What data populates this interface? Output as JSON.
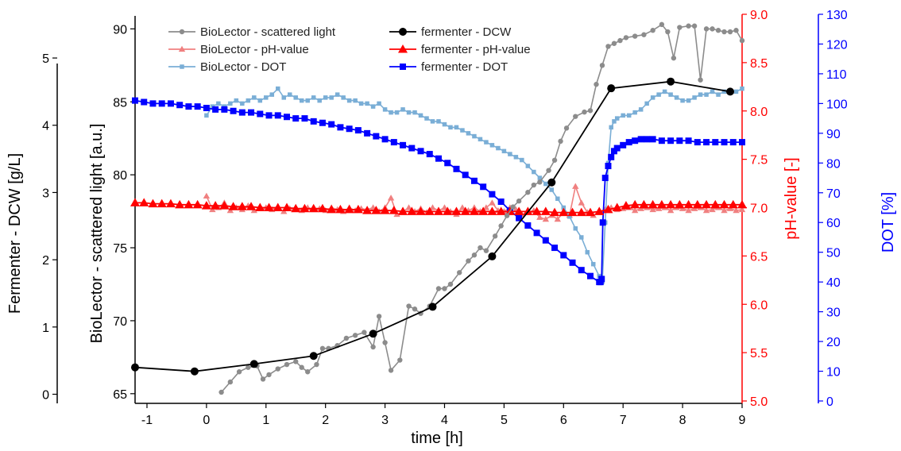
{
  "chart_data": {
    "type": "line",
    "xlabel": "time   [h]",
    "x_ticks": [
      "-1",
      "0",
      "1",
      "2",
      "3",
      "4",
      "5",
      "6",
      "7",
      "8",
      "9"
    ],
    "xlim": [
      -1.2,
      9
    ],
    "axes": {
      "dcw": {
        "label": "Fermenter - DCW   [g/L]",
        "ticks": [
          "0",
          "1",
          "2",
          "3",
          "4",
          "5"
        ],
        "ylim": [
          -0.1,
          5.65
        ],
        "color": "#000000"
      },
      "sl": {
        "label": "BioLector - scattered light   [a.u.]",
        "ticks": [
          "65",
          "70",
          "75",
          "80",
          "85",
          "90"
        ],
        "ylim": [
          64.5,
          91
        ],
        "color": "#000000"
      },
      "ph": {
        "label": "pH-value   [-]",
        "ticks": [
          "5.0",
          "5.5",
          "6.0",
          "6.5",
          "7.0",
          "7.5",
          "8.0",
          "8.5",
          "9.0"
        ],
        "ylim": [
          5.0,
          9.0
        ],
        "color": "#ff0000"
      },
      "dot": {
        "label": "DOT   [%]",
        "ticks": [
          "0",
          "10",
          "20",
          "30",
          "40",
          "50",
          "60",
          "70",
          "80",
          "90",
          "100",
          "110",
          "120",
          "130"
        ],
        "ylim": [
          0,
          130
        ],
        "color": "#0000ff"
      }
    },
    "legend": {
      "placement": "top-left"
    },
    "series": [
      {
        "name": "BioLector - scattered light",
        "axis": "sl",
        "color": "#8c8c8c",
        "marker": "circle",
        "x": [
          0.25,
          0.4,
          0.55,
          0.7,
          0.85,
          0.95,
          1.05,
          1.2,
          1.35,
          1.5,
          1.6,
          1.7,
          1.85,
          1.95,
          2.05,
          2.2,
          2.35,
          2.5,
          2.65,
          2.8,
          2.9,
          3.0,
          3.1,
          3.25,
          3.4,
          3.5,
          3.6,
          3.75,
          3.9,
          4.0,
          4.1,
          4.25,
          4.4,
          4.5,
          4.6,
          4.7,
          4.85,
          4.95,
          5.05,
          5.15,
          5.25,
          5.4,
          5.5,
          5.6,
          5.75,
          5.85,
          5.95,
          6.05,
          6.2,
          6.35,
          6.45,
          6.55,
          6.65,
          6.75,
          6.85,
          6.95,
          7.05,
          7.2,
          7.35,
          7.5,
          7.65,
          7.75,
          7.85,
          7.95,
          8.1,
          8.2,
          8.3,
          8.4,
          8.5,
          8.6,
          8.7,
          8.8,
          8.9,
          9.0
        ],
        "y": [
          65.1,
          65.8,
          66.5,
          66.8,
          66.9,
          66.0,
          66.3,
          66.7,
          67.0,
          67.2,
          66.8,
          66.5,
          67.0,
          68.1,
          68.1,
          68.3,
          68.8,
          69.0,
          69.2,
          68.2,
          70.3,
          68.5,
          66.6,
          67.3,
          71.0,
          70.8,
          70.5,
          71.0,
          72.2,
          72.2,
          72.5,
          73.3,
          74.1,
          74.5,
          75.0,
          74.8,
          75.8,
          76.5,
          77.2,
          77.8,
          78.2,
          78.8,
          79.3,
          79.5,
          80.3,
          81.0,
          82.3,
          83.2,
          84.0,
          84.3,
          84.4,
          86.2,
          87.5,
          88.8,
          89.0,
          89.2,
          89.4,
          89.5,
          89.6,
          89.9,
          90.3,
          89.8,
          88.0,
          90.1,
          90.2,
          90.2,
          86.5,
          90.0,
          90.0,
          89.9,
          89.8,
          89.8,
          89.9,
          89.2
        ]
      },
      {
        "name": "fermenter - DCW",
        "axis": "dcw",
        "color": "#000000",
        "marker": "circle-large",
        "x": [
          -1.2,
          -0.2,
          0.8,
          1.8,
          2.8,
          3.8,
          4.8,
          5.8,
          6.8,
          7.8,
          8.8
        ],
        "y": [
          0.4,
          0.34,
          0.45,
          0.57,
          0.9,
          1.3,
          2.05,
          3.15,
          4.55,
          4.65,
          4.5
        ]
      },
      {
        "name": "BioLector - pH-value",
        "axis": "ph",
        "color": "#f08080",
        "marker": "triangle",
        "x": [
          0.0,
          0.1,
          0.2,
          0.3,
          0.4,
          0.5,
          0.6,
          0.7,
          0.8,
          0.9,
          1.0,
          1.1,
          1.2,
          1.3,
          1.4,
          1.5,
          1.6,
          1.7,
          1.8,
          1.9,
          2.0,
          2.1,
          2.2,
          2.3,
          2.4,
          2.5,
          2.6,
          2.7,
          2.8,
          2.9,
          3.0,
          3.1,
          3.2,
          3.3,
          3.4,
          3.5,
          3.6,
          3.7,
          3.8,
          3.9,
          4.0,
          4.1,
          4.2,
          4.3,
          4.4,
          4.5,
          4.6,
          4.7,
          4.8,
          4.9,
          5.0,
          5.1,
          5.2,
          5.3,
          5.4,
          5.5,
          5.6,
          5.7,
          5.8,
          5.9,
          6.0,
          6.1,
          6.2,
          6.3,
          6.4,
          6.5,
          6.6,
          6.7,
          6.8,
          6.9,
          7.0,
          7.1,
          7.2,
          7.3,
          7.4,
          7.5,
          7.6,
          7.7,
          7.8,
          7.9,
          8.0,
          8.1,
          8.2,
          8.3,
          8.4,
          8.5,
          8.6,
          8.7,
          8.8,
          8.9,
          9.0
        ],
        "y": [
          7.12,
          6.98,
          7.0,
          7.05,
          6.97,
          7.0,
          6.98,
          7.02,
          6.97,
          7.0,
          7.0,
          6.98,
          7.0,
          6.96,
          6.99,
          7.0,
          6.97,
          7.0,
          6.98,
          6.99,
          6.97,
          7.0,
          6.98,
          6.96,
          7.0,
          6.97,
          6.99,
          6.98,
          7.0,
          6.96,
          7.0,
          7.1,
          6.93,
          6.96,
          7.0,
          6.96,
          6.99,
          6.95,
          7.0,
          6.97,
          7.0,
          6.96,
          6.93,
          7.0,
          6.97,
          7.0,
          6.96,
          7.0,
          7.05,
          6.97,
          6.96,
          7.0,
          6.98,
          6.93,
          6.95,
          6.97,
          6.9,
          6.88,
          6.92,
          6.88,
          6.95,
          6.92,
          7.22,
          7.05,
          6.95,
          6.92,
          6.96,
          6.98,
          7.0,
          6.98,
          6.99,
          7.0,
          6.97,
          6.99,
          7.0,
          6.98,
          6.99,
          7.0,
          6.97,
          7.0,
          6.99,
          6.97,
          6.99,
          7.0,
          6.97,
          6.98,
          7.0,
          6.97,
          6.99,
          6.97,
          6.98
        ]
      },
      {
        "name": "fermenter - pH-value",
        "axis": "ph",
        "color": "#ff0000",
        "marker": "triangle-large",
        "x": [
          -1.2,
          -1.05,
          -0.9,
          -0.75,
          -0.6,
          -0.45,
          -0.3,
          -0.15,
          0.0,
          0.15,
          0.3,
          0.45,
          0.6,
          0.75,
          0.9,
          1.05,
          1.2,
          1.35,
          1.5,
          1.65,
          1.8,
          1.95,
          2.1,
          2.25,
          2.4,
          2.55,
          2.7,
          2.85,
          3.0,
          3.15,
          3.3,
          3.45,
          3.6,
          3.75,
          3.9,
          4.05,
          4.2,
          4.35,
          4.5,
          4.65,
          4.8,
          4.95,
          5.1,
          5.25,
          5.4,
          5.55,
          5.7,
          5.85,
          6.0,
          6.15,
          6.3,
          6.45,
          6.6,
          6.75,
          6.9,
          7.05,
          7.2,
          7.35,
          7.5,
          7.65,
          7.8,
          7.95,
          8.1,
          8.25,
          8.4,
          8.55,
          8.7,
          8.85,
          9.0
        ],
        "y": [
          7.05,
          7.05,
          7.04,
          7.04,
          7.04,
          7.03,
          7.03,
          7.03,
          7.02,
          7.02,
          7.02,
          7.01,
          7.01,
          7.01,
          7.0,
          7.0,
          7.0,
          7.0,
          6.99,
          6.99,
          6.99,
          6.99,
          6.98,
          6.98,
          6.98,
          6.98,
          6.97,
          6.97,
          6.97,
          6.97,
          6.96,
          6.96,
          6.96,
          6.96,
          6.96,
          6.96,
          6.96,
          6.96,
          6.96,
          6.96,
          6.96,
          6.96,
          6.96,
          6.96,
          6.96,
          6.96,
          6.96,
          6.95,
          6.95,
          6.95,
          6.95,
          6.95,
          6.96,
          6.98,
          7.0,
          7.02,
          7.03,
          7.03,
          7.03,
          7.03,
          7.03,
          7.03,
          7.03,
          7.03,
          7.03,
          7.03,
          7.03,
          7.03,
          7.03
        ]
      },
      {
        "name": "BioLector - DOT",
        "axis": "dot",
        "color": "#7aaed6",
        "marker": "square",
        "x": [
          0.0,
          0.1,
          0.2,
          0.3,
          0.4,
          0.5,
          0.6,
          0.7,
          0.8,
          0.9,
          1.0,
          1.1,
          1.2,
          1.3,
          1.4,
          1.5,
          1.6,
          1.7,
          1.8,
          1.9,
          2.0,
          2.1,
          2.2,
          2.3,
          2.4,
          2.5,
          2.6,
          2.7,
          2.8,
          2.9,
          3.0,
          3.1,
          3.2,
          3.3,
          3.4,
          3.5,
          3.6,
          3.7,
          3.8,
          3.9,
          4.0,
          4.1,
          4.2,
          4.3,
          4.4,
          4.5,
          4.6,
          4.7,
          4.8,
          4.9,
          5.0,
          5.1,
          5.2,
          5.3,
          5.4,
          5.5,
          5.6,
          5.7,
          5.8,
          5.9,
          6.0,
          6.1,
          6.2,
          6.3,
          6.4,
          6.5,
          6.6,
          6.65,
          6.7,
          6.75,
          6.8,
          6.85,
          6.9,
          7.0,
          7.1,
          7.2,
          7.3,
          7.4,
          7.5,
          7.6,
          7.7,
          7.8,
          7.9,
          8.0,
          8.1,
          8.2,
          8.3,
          8.4,
          8.5,
          8.6,
          8.7,
          8.8,
          8.9,
          9.0
        ],
        "y": [
          96,
          99,
          100,
          99,
          100,
          101,
          100,
          101,
          102,
          101,
          102,
          103,
          105,
          102,
          103,
          102,
          101,
          101,
          102,
          101,
          102,
          102,
          103,
          102,
          101,
          101,
          100,
          100,
          99,
          100,
          98,
          97,
          97,
          98,
          97,
          97,
          96,
          95,
          94,
          94,
          93,
          92,
          92,
          91,
          90,
          89,
          88,
          87,
          86,
          85,
          84,
          83,
          82,
          81,
          79,
          77,
          75,
          73,
          71,
          68,
          65,
          62,
          58,
          55,
          50,
          46,
          42,
          40,
          60,
          80,
          92,
          94,
          95,
          96,
          96,
          97,
          98,
          100,
          102,
          103,
          104,
          103,
          102,
          101,
          101,
          102,
          103,
          103,
          104,
          103,
          104,
          104,
          104,
          105
        ]
      },
      {
        "name": "fermenter - DOT",
        "axis": "dot",
        "color": "#0000ff",
        "marker": "square-large",
        "x": [
          -1.2,
          -1.05,
          -0.9,
          -0.75,
          -0.6,
          -0.45,
          -0.3,
          -0.15,
          0.0,
          0.15,
          0.3,
          0.45,
          0.6,
          0.75,
          0.9,
          1.05,
          1.2,
          1.35,
          1.5,
          1.65,
          1.8,
          1.95,
          2.1,
          2.25,
          2.4,
          2.55,
          2.7,
          2.85,
          3.0,
          3.15,
          3.3,
          3.45,
          3.6,
          3.75,
          3.9,
          4.05,
          4.2,
          4.35,
          4.5,
          4.65,
          4.8,
          4.95,
          5.1,
          5.25,
          5.4,
          5.55,
          5.7,
          5.85,
          6.0,
          6.15,
          6.3,
          6.45,
          6.6,
          6.62,
          6.64,
          6.66,
          6.7,
          6.75,
          6.8,
          6.85,
          6.9,
          7.0,
          7.1,
          7.2,
          7.3,
          7.4,
          7.5,
          7.65,
          7.8,
          7.95,
          8.1,
          8.25,
          8.4,
          8.55,
          8.7,
          8.85,
          9.0
        ],
        "y": [
          101,
          100.5,
          100,
          100,
          100,
          99.5,
          99,
          99,
          98.5,
          98,
          98,
          97.5,
          97,
          97,
          96.5,
          96,
          96,
          95.5,
          95,
          95,
          94,
          93.5,
          93,
          92,
          91.5,
          91,
          90,
          89,
          88,
          87,
          86,
          85,
          84,
          83,
          81.5,
          80,
          78,
          76,
          74,
          72,
          69.5,
          67,
          64,
          61.5,
          59,
          56.5,
          54,
          51.5,
          49,
          46.5,
          44,
          42,
          40,
          40,
          41,
          60,
          75,
          79,
          82,
          84,
          85,
          86,
          87,
          87.5,
          88,
          88,
          88,
          87.5,
          87.5,
          87.5,
          87.5,
          87,
          87,
          87,
          87,
          87,
          87
        ]
      }
    ]
  }
}
